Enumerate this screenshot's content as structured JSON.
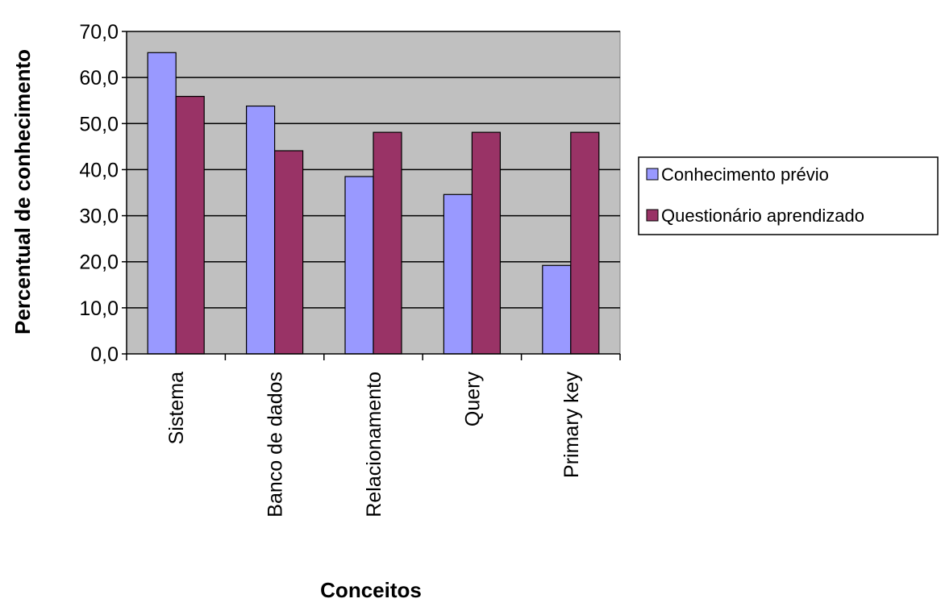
{
  "chart_data": {
    "type": "bar",
    "xlabel": "Conceitos",
    "ylabel": "Percentual de conhecimento",
    "categories": [
      "Sistema",
      "Banco de dados",
      "Relacionamento",
      "Query",
      "Primary key"
    ],
    "series": [
      {
        "name": "Conhecimento prévio",
        "color": "#9999FF",
        "values": [
          65.4,
          53.8,
          38.5,
          34.6,
          19.2
        ]
      },
      {
        "name": "Questionário aprendizado",
        "color": "#993366",
        "values": [
          55.9,
          44.1,
          48.1,
          48.1,
          48.1
        ]
      }
    ],
    "ylim": [
      0,
      70
    ],
    "yticks": [
      "0,0",
      "10,0",
      "20,0",
      "30,0",
      "40,0",
      "50,0",
      "60,0",
      "70,0"
    ],
    "grid": true,
    "plot_background": "#C0C0C0",
    "legend_position": "right"
  }
}
